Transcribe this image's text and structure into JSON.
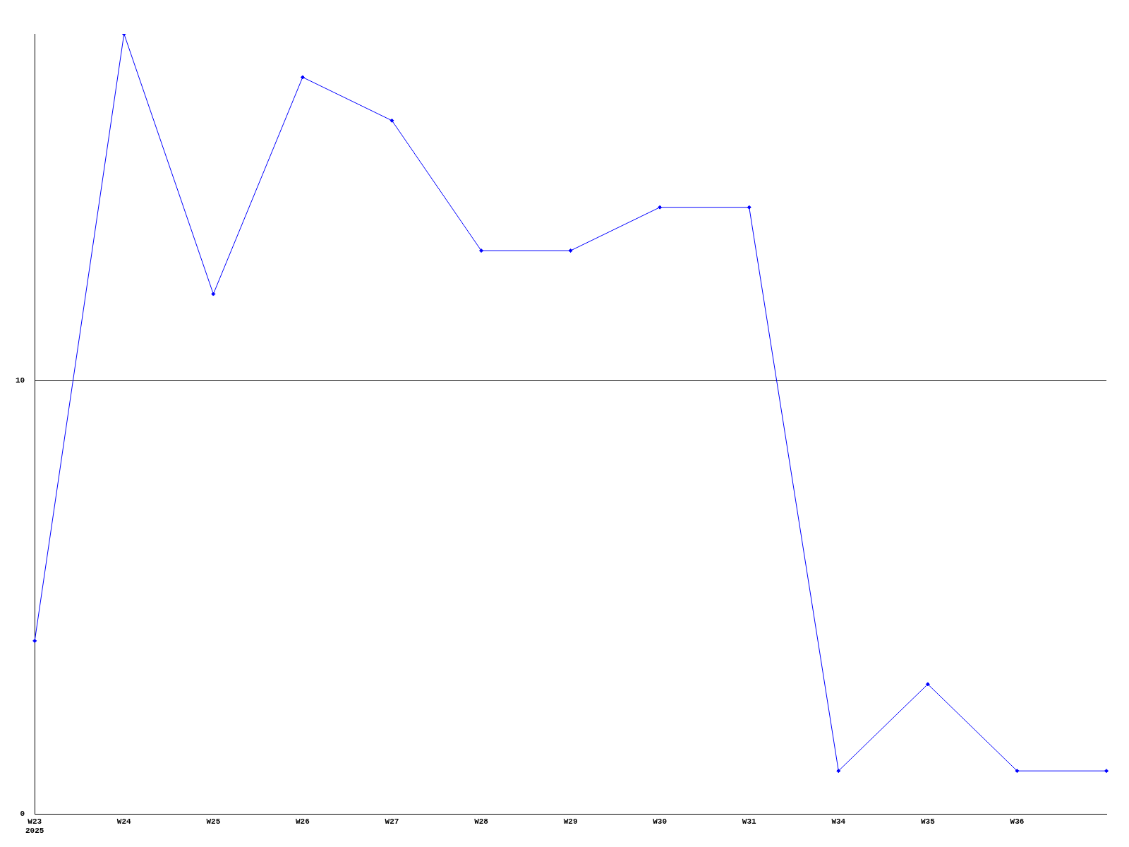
{
  "chart_data": {
    "type": "line",
    "categories": [
      "W23\n2025",
      "W24",
      "W25",
      "W26",
      "W27",
      "W28",
      "W29",
      "W30",
      "W31",
      "W34",
      "W35",
      "W36",
      null
    ],
    "series": [
      {
        "color": "#0000ff",
        "values": [
          4,
          18,
          12,
          17,
          16,
          13,
          13,
          14,
          14,
          1,
          3,
          1,
          1
        ]
      }
    ],
    "ylim": [
      0,
      18
    ],
    "yticks": [
      0,
      10
    ],
    "grid": "y",
    "marker": "diamond",
    "line_style": "solid",
    "legend": false
  }
}
